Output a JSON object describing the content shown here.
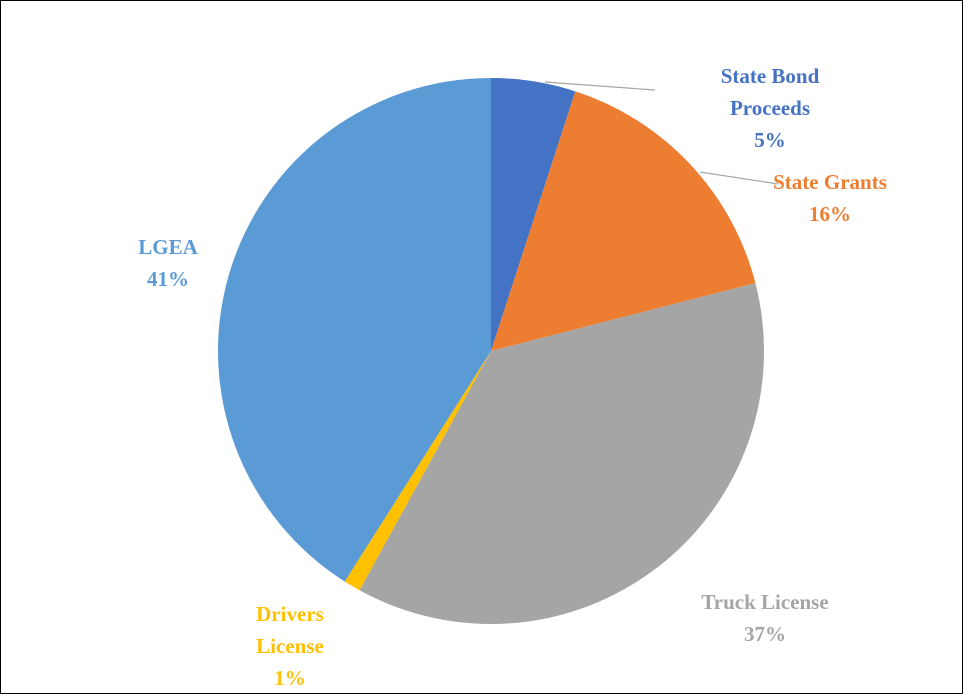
{
  "chart_data": {
    "type": "pie",
    "categories": [
      "State Bond Proceeds",
      "State Grants",
      "Truck License",
      "Drivers License",
      "LGEA"
    ],
    "values": [
      5,
      16,
      37,
      1,
      41
    ],
    "value_labels": [
      "5%",
      "16%",
      "37%",
      "1%",
      "41%"
    ],
    "colors": [
      "#4472c4",
      "#ed7d31",
      "#a5a5a5",
      "#ffc000",
      "#5b9bd5"
    ]
  }
}
